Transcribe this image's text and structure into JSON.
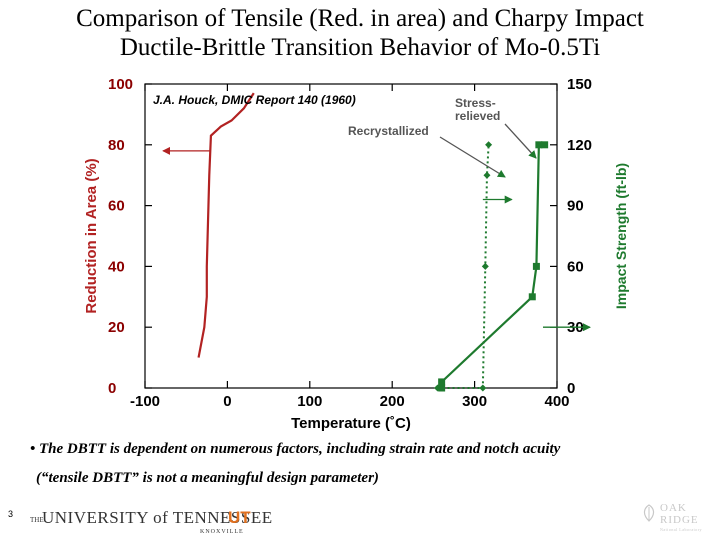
{
  "slide": {
    "title_line1": "Comparison of Tensile (Red. in area) and Charpy Impact",
    "title_line2": "Ductile-Brittle Transition Behavior of Mo-0.5Ti",
    "bullet_line1": "• The DBTT is dependent on numerous factors, including strain rate and notch acuity",
    "bullet_line2": "(“tensile DBTT” is not a meaningful design parameter)",
    "page_number": "3"
  },
  "footer": {
    "university_prefix": "THE",
    "university_name": "UNIVERSITY of TENNESSEE",
    "university_mark": "UT",
    "campus": "KNOXVILLE",
    "lab_line1": "OAK",
    "lab_line2": "RIDGE",
    "lab_line3": "National Laboratory"
  },
  "chart_data": {
    "type": "line",
    "xlabel": "Temperature (˚C)",
    "ylabel_left": "Reduction in Area (%)",
    "ylabel_right": "Impact Strength (ft-lb)",
    "xlim": [
      -100,
      400
    ],
    "ylim_left": [
      0,
      100
    ],
    "ylim_right": [
      0,
      150
    ],
    "x_ticks": [
      "-100",
      "0",
      "100",
      "200",
      "300",
      "400"
    ],
    "y_ticks_left": [
      "0",
      "20",
      "40",
      "60",
      "80",
      "100"
    ],
    "y_ticks_right": [
      "0",
      "30",
      "60",
      "90",
      "120",
      "150"
    ],
    "grid": false,
    "source_annotation": "J.A. Houck, DMIC Report 140 (1960)",
    "annotations": {
      "recrystallized": "Recrystallized",
      "stress_relieved_line1": "Stress-",
      "stress_relieved_line2": "relieved"
    },
    "colors": {
      "tensile": "#b22222",
      "impact": "#1e7a2e",
      "axis": "#000000",
      "tick_labels": "#8b0000"
    },
    "series": [
      {
        "axis": "left",
        "style": "solid",
        "color": "#b22222",
        "points": [
          [
            -35,
            10
          ],
          [
            -28,
            20
          ],
          [
            -25,
            30
          ],
          [
            -25,
            40
          ],
          [
            -24,
            50
          ],
          [
            -23,
            60
          ],
          [
            -22,
            70
          ],
          [
            -20,
            83
          ],
          [
            -8,
            86
          ],
          [
            5,
            88
          ],
          [
            20,
            92
          ],
          [
            32,
            97
          ]
        ]
      },
      {
        "name": "Recrystallized",
        "axis": "right",
        "style": "solid",
        "color": "#1e7a2e",
        "markers": "square",
        "points": [
          [
            260,
            0
          ],
          [
            260,
            3
          ],
          [
            370,
            45
          ],
          [
            375,
            60
          ],
          [
            378,
            120
          ],
          [
            385,
            120
          ]
        ]
      },
      {
        "name": "Stress-relieved",
        "axis": "right",
        "style": "dotted",
        "color": "#1e7a2e",
        "markers": "diamond",
        "points": [
          [
            255,
            0
          ],
          [
            310,
            0
          ],
          [
            313,
            60
          ],
          [
            315,
            105
          ],
          [
            317,
            120
          ]
        ]
      }
    ]
  }
}
